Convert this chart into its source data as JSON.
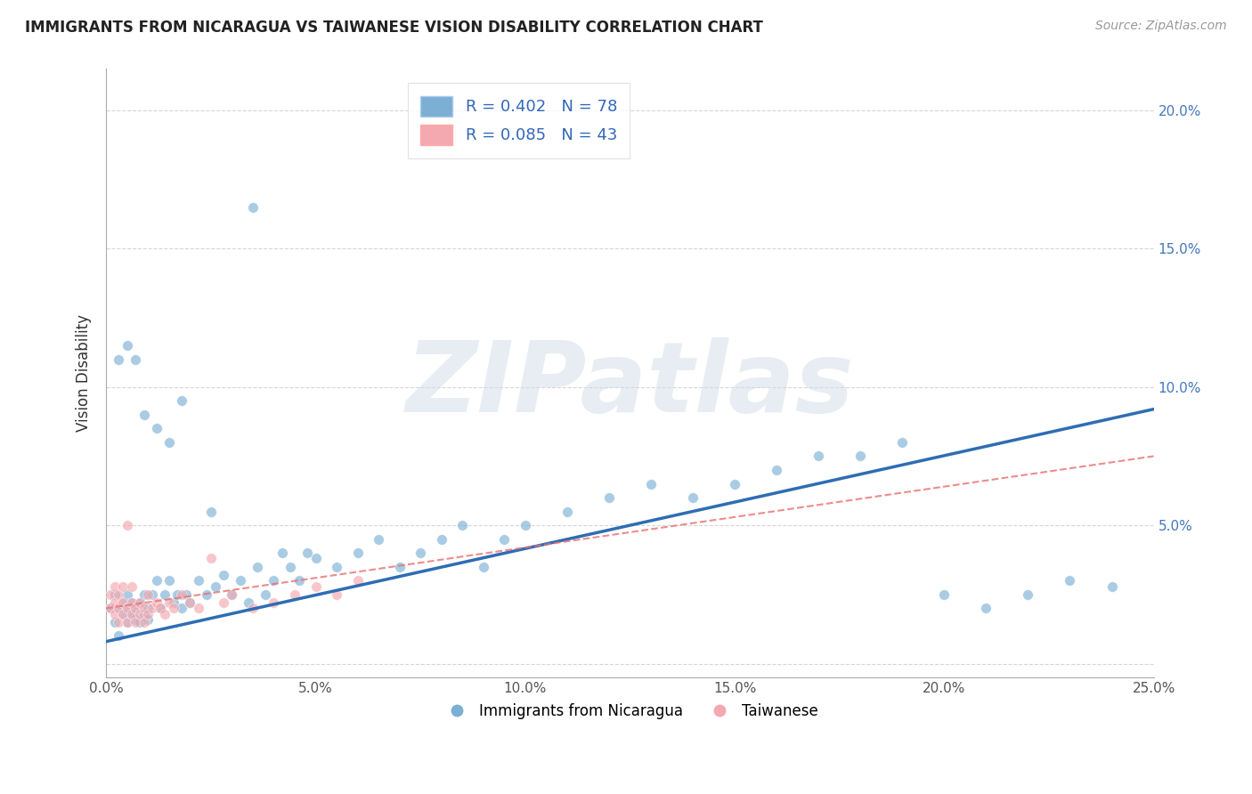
{
  "title": "IMMIGRANTS FROM NICARAGUA VS TAIWANESE VISION DISABILITY CORRELATION CHART",
  "source": "Source: ZipAtlas.com",
  "ylabel": "Vision Disability",
  "legend_label1": "Immigrants from Nicaragua",
  "legend_label2": "Taiwanese",
  "r1": 0.402,
  "n1": 78,
  "r2": 0.085,
  "n2": 43,
  "color1": "#7BAFD4",
  "color2": "#F4A8B0",
  "line_color1": "#2E6DB4",
  "line_color2": "#E87070",
  "xlim": [
    0.0,
    0.25
  ],
  "ylim": [
    -0.005,
    0.215
  ],
  "blue_line_x": [
    0.0,
    0.25
  ],
  "blue_line_y": [
    0.008,
    0.092
  ],
  "pink_line_x": [
    0.0,
    0.25
  ],
  "pink_line_y": [
    0.02,
    0.075
  ],
  "background_color": "#FFFFFF",
  "watermark": "ZIPatlas",
  "blue_x": [
    0.001,
    0.002,
    0.002,
    0.003,
    0.003,
    0.004,
    0.004,
    0.005,
    0.005,
    0.005,
    0.006,
    0.006,
    0.007,
    0.007,
    0.008,
    0.008,
    0.009,
    0.009,
    0.01,
    0.01,
    0.011,
    0.012,
    0.013,
    0.014,
    0.015,
    0.016,
    0.017,
    0.018,
    0.019,
    0.02,
    0.022,
    0.024,
    0.026,
    0.028,
    0.03,
    0.032,
    0.034,
    0.036,
    0.038,
    0.04,
    0.042,
    0.044,
    0.046,
    0.048,
    0.05,
    0.055,
    0.06,
    0.065,
    0.07,
    0.075,
    0.08,
    0.085,
    0.09,
    0.095,
    0.1,
    0.11,
    0.12,
    0.13,
    0.14,
    0.15,
    0.16,
    0.17,
    0.18,
    0.19,
    0.2,
    0.21,
    0.22,
    0.23,
    0.24,
    0.003,
    0.005,
    0.007,
    0.009,
    0.012,
    0.015,
    0.018,
    0.025,
    0.035
  ],
  "blue_y": [
    0.02,
    0.015,
    0.025,
    0.01,
    0.02,
    0.018,
    0.022,
    0.015,
    0.02,
    0.025,
    0.018,
    0.022,
    0.016,
    0.02,
    0.015,
    0.022,
    0.018,
    0.025,
    0.016,
    0.02,
    0.025,
    0.03,
    0.02,
    0.025,
    0.03,
    0.022,
    0.025,
    0.02,
    0.025,
    0.022,
    0.03,
    0.025,
    0.028,
    0.032,
    0.025,
    0.03,
    0.022,
    0.035,
    0.025,
    0.03,
    0.04,
    0.035,
    0.03,
    0.04,
    0.038,
    0.035,
    0.04,
    0.045,
    0.035,
    0.04,
    0.045,
    0.05,
    0.035,
    0.045,
    0.05,
    0.055,
    0.06,
    0.065,
    0.06,
    0.065,
    0.07,
    0.075,
    0.075,
    0.08,
    0.025,
    0.02,
    0.025,
    0.03,
    0.028,
    0.11,
    0.115,
    0.11,
    0.09,
    0.085,
    0.08,
    0.095,
    0.055,
    0.165
  ],
  "pink_x": [
    0.001,
    0.001,
    0.002,
    0.002,
    0.002,
    0.003,
    0.003,
    0.003,
    0.004,
    0.004,
    0.004,
    0.005,
    0.005,
    0.005,
    0.006,
    0.006,
    0.006,
    0.007,
    0.007,
    0.008,
    0.008,
    0.009,
    0.009,
    0.01,
    0.01,
    0.011,
    0.012,
    0.013,
    0.014,
    0.015,
    0.016,
    0.018,
    0.02,
    0.022,
    0.025,
    0.028,
    0.03,
    0.035,
    0.04,
    0.045,
    0.05,
    0.055,
    0.06
  ],
  "pink_y": [
    0.02,
    0.025,
    0.018,
    0.022,
    0.028,
    0.015,
    0.02,
    0.025,
    0.018,
    0.022,
    0.028,
    0.015,
    0.02,
    0.05,
    0.018,
    0.022,
    0.028,
    0.015,
    0.02,
    0.018,
    0.022,
    0.015,
    0.02,
    0.018,
    0.025,
    0.02,
    0.022,
    0.02,
    0.018,
    0.022,
    0.02,
    0.025,
    0.022,
    0.02,
    0.038,
    0.022,
    0.025,
    0.02,
    0.022,
    0.025,
    0.028,
    0.025,
    0.03
  ]
}
